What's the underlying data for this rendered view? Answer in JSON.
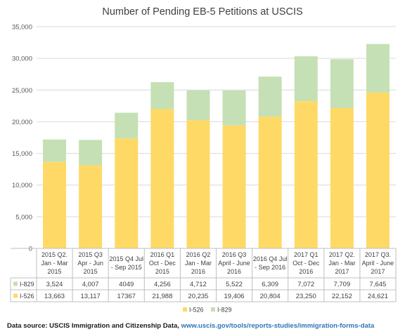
{
  "chart_data": {
    "type": "bar",
    "stacked": true,
    "title": "Number of Pending EB-5 Petitions at USCIS",
    "categories": [
      [
        "2015 Q2.",
        "Jan - Mar",
        "2015"
      ],
      [
        "2015 Q3",
        "Apr - Jun",
        "2015"
      ],
      [
        "2015 Q4 Jul",
        "- Sep 2015"
      ],
      [
        "2016 Q1",
        "Oct - Dec",
        "2015"
      ],
      [
        "2016 Q2",
        "Jan - Mar",
        "2016"
      ],
      [
        "2016 Q3",
        "April - June",
        "2016"
      ],
      [
        "2016 Q4 Jul",
        "- Sep 2016"
      ],
      [
        "2017 Q1",
        "Oct - Dec",
        "2016"
      ],
      [
        "2017 Q2.",
        "Jan - Mar",
        "2017"
      ],
      [
        "2017 Q3.",
        "April - June",
        "2017"
      ]
    ],
    "series": [
      {
        "name": "I-526",
        "color": "#ffd966",
        "values": [
          13663,
          13117,
          17367,
          21988,
          20235,
          19406,
          20804,
          23250,
          22152,
          24621
        ],
        "labels": [
          "13,663",
          "13,117",
          "17367",
          "21,988",
          "20,235",
          "19,406",
          "20,804",
          "23,250",
          "22,152",
          "24,621"
        ]
      },
      {
        "name": "I-829",
        "color": "#c5e0b4",
        "values": [
          3524,
          4007,
          4049,
          4256,
          4712,
          5522,
          6309,
          7072,
          7709,
          7645
        ],
        "labels": [
          "3,524",
          "4,007",
          "4049",
          "4,256",
          "4,712",
          "5,522",
          "6,309",
          "7,072",
          "7,709",
          "7,645"
        ]
      }
    ],
    "ylim": [
      0,
      35000
    ],
    "yticks": [
      0,
      5000,
      10000,
      15000,
      20000,
      25000,
      30000,
      35000
    ],
    "ytick_labels": [
      "0",
      "5,000",
      "10,000",
      "15,000",
      "20,000",
      "25,000",
      "30,000",
      "35,000"
    ],
    "grid": true,
    "legend": "bottom"
  },
  "source": {
    "prefix": "Data source: USCIS Immigration and Citizenship Data, ",
    "url": "www.uscis.gov/tools/reports-studies/immigration-forms-data"
  }
}
